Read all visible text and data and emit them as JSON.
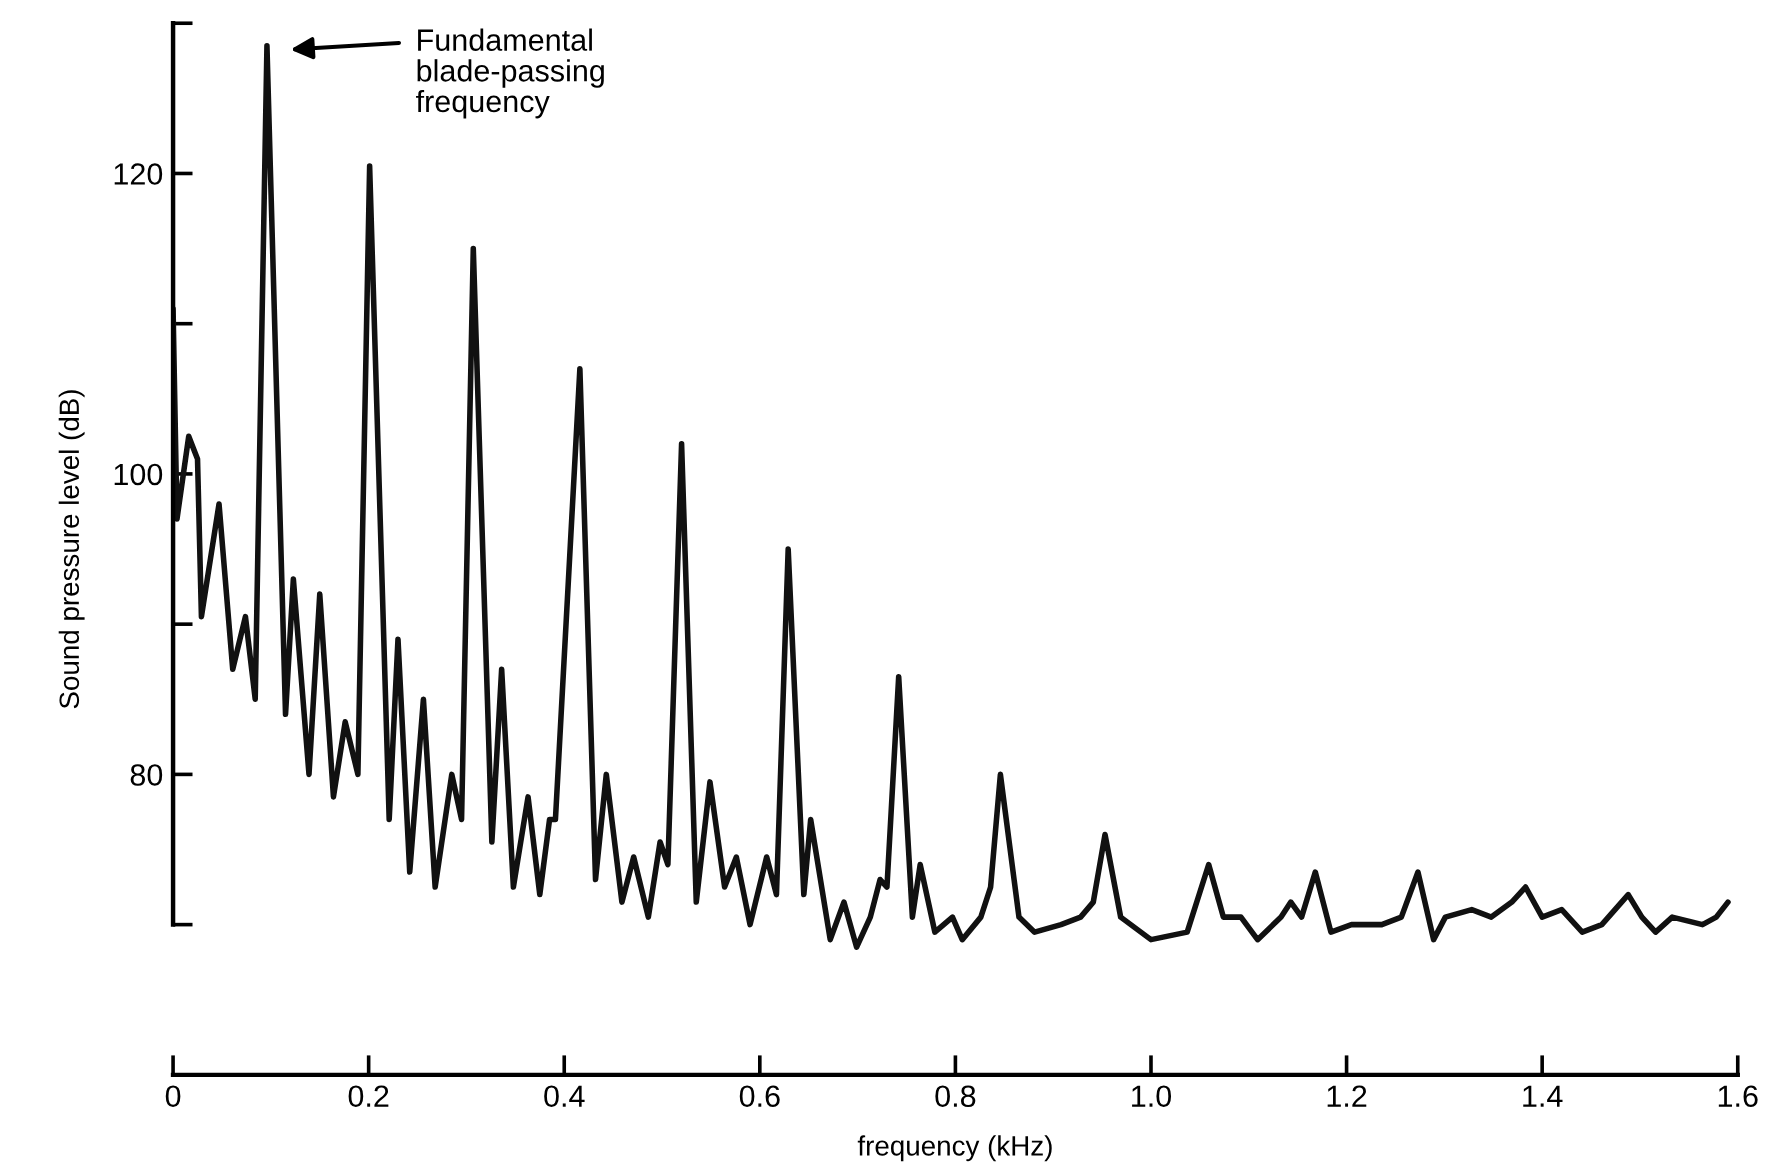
{
  "chart_data": {
    "type": "line",
    "xlabel": "frequency (kHz)",
    "ylabel": "Sound pressure level (dB)",
    "xlim": [
      0,
      1.6
    ],
    "xticks": [
      0,
      0.2,
      0.4,
      0.6,
      0.8,
      {
        "value": 1,
        "label": "1.0"
      },
      1.2,
      1.4,
      1.6
    ],
    "ylim": [
      60,
      130
    ],
    "yticks": [
      {
        "value": 70,
        "label": null
      },
      80,
      {
        "value": 90,
        "label": null
      },
      100,
      {
        "value": 110,
        "label": null
      },
      120,
      {
        "value": 130,
        "label": null
      }
    ],
    "grid": false,
    "legend": false,
    "marker": "none",
    "line_style": "solid",
    "annotations": [
      "Fundamental\nblade-passing\nfrequency"
    ],
    "series": [
      {
        "color": "#111111",
        "x": [
          0,
          0.004,
          0.016,
          0.025,
          0.029,
          0.047,
          0.061,
          0.074,
          0.084,
          0.096,
          0.115,
          0.123,
          0.139,
          0.15,
          0.164,
          0.176,
          0.189,
          0.201,
          0.221,
          0.23,
          0.242,
          0.256,
          0.268,
          0.285,
          0.295,
          0.307,
          0.326,
          0.336,
          0.348,
          0.363,
          0.375,
          0.385,
          0.391,
          0.416,
          0.432,
          0.443,
          0.459,
          0.471,
          0.486,
          0.498,
          0.506,
          0.52,
          0.535,
          0.549,
          0.564,
          0.576,
          0.59,
          0.607,
          0.617,
          0.629,
          0.645,
          0.652,
          0.672,
          0.686,
          0.699,
          0.713,
          0.723,
          0.73,
          0.742,
          0.756,
          0.764,
          0.779,
          0.797,
          0.807,
          0.826,
          0.836,
          0.846,
          0.865,
          0.881,
          0.908,
          0.928,
          0.941,
          0.953,
          0.969,
          1.0,
          1.037,
          1.059,
          1.074,
          1.092,
          1.109,
          1.133,
          1.143,
          1.154,
          1.168,
          1.184,
          1.205,
          1.236,
          1.256,
          1.273,
          1.289,
          1.301,
          1.328,
          1.348,
          1.369,
          1.383,
          1.4,
          1.42,
          1.441,
          1.461,
          1.488,
          1.502,
          1.516,
          1.533,
          1.564,
          1.578,
          1.59
        ],
        "values": [
          111,
          97,
          102.5,
          101,
          90.5,
          98,
          87,
          90.5,
          85,
          128.5,
          84,
          93,
          80,
          92,
          78.5,
          83.5,
          80,
          120.5,
          77,
          89,
          73.5,
          85,
          72.5,
          80,
          77,
          115,
          75.5,
          87,
          72.5,
          78.5,
          72,
          77,
          77,
          107,
          73,
          80,
          71.5,
          74.5,
          70.5,
          75.5,
          74,
          102,
          71.5,
          79.5,
          72.5,
          74.5,
          70,
          74.5,
          72,
          95,
          72,
          77,
          69,
          71.5,
          68.5,
          70.5,
          73,
          72.5,
          86.5,
          70.5,
          74,
          69.5,
          70.5,
          69,
          70.5,
          72.5,
          80,
          70.5,
          69.5,
          70,
          70.5,
          71.5,
          76,
          70.5,
          69,
          69.5,
          74,
          70.5,
          70.5,
          69,
          70.5,
          71.5,
          70.5,
          73.5,
          69.5,
          70,
          70,
          70.5,
          73.5,
          69,
          70.5,
          71,
          70.5,
          71.5,
          72.5,
          70.5,
          71,
          69.5,
          70,
          72,
          70.5,
          69.5,
          70.5,
          70,
          70.5,
          71.5
        ]
      }
    ]
  }
}
